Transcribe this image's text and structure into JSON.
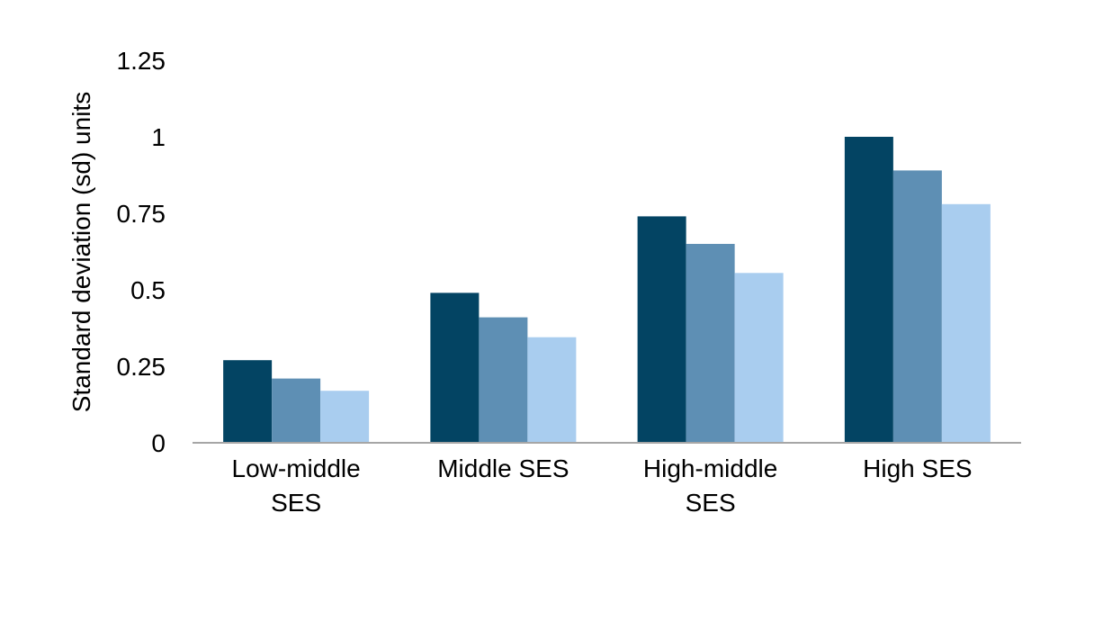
{
  "chart_data": {
    "type": "bar",
    "title": "",
    "xlabel": "",
    "ylabel": "Standard deviation (sd) units",
    "ylim": [
      0,
      1.25
    ],
    "yticks": [
      "0",
      "0.25",
      "0.5",
      "0.75",
      "1",
      "1.25"
    ],
    "grid": false,
    "legend": "none",
    "categories": [
      [
        "Low-middle",
        "SES"
      ],
      [
        "Middle SES"
      ],
      [
        "High-middle",
        "SES"
      ],
      [
        "High SES"
      ]
    ],
    "series": [
      {
        "color": "#034463",
        "values": [
          0.27,
          0.49,
          0.74,
          1.0
        ]
      },
      {
        "color": "#5e8fb4",
        "values": [
          0.21,
          0.41,
          0.65,
          0.89
        ]
      },
      {
        "color": "#a9cdef",
        "values": [
          0.17,
          0.345,
          0.555,
          0.78
        ]
      }
    ],
    "axis_color": "#a6a6a6"
  }
}
